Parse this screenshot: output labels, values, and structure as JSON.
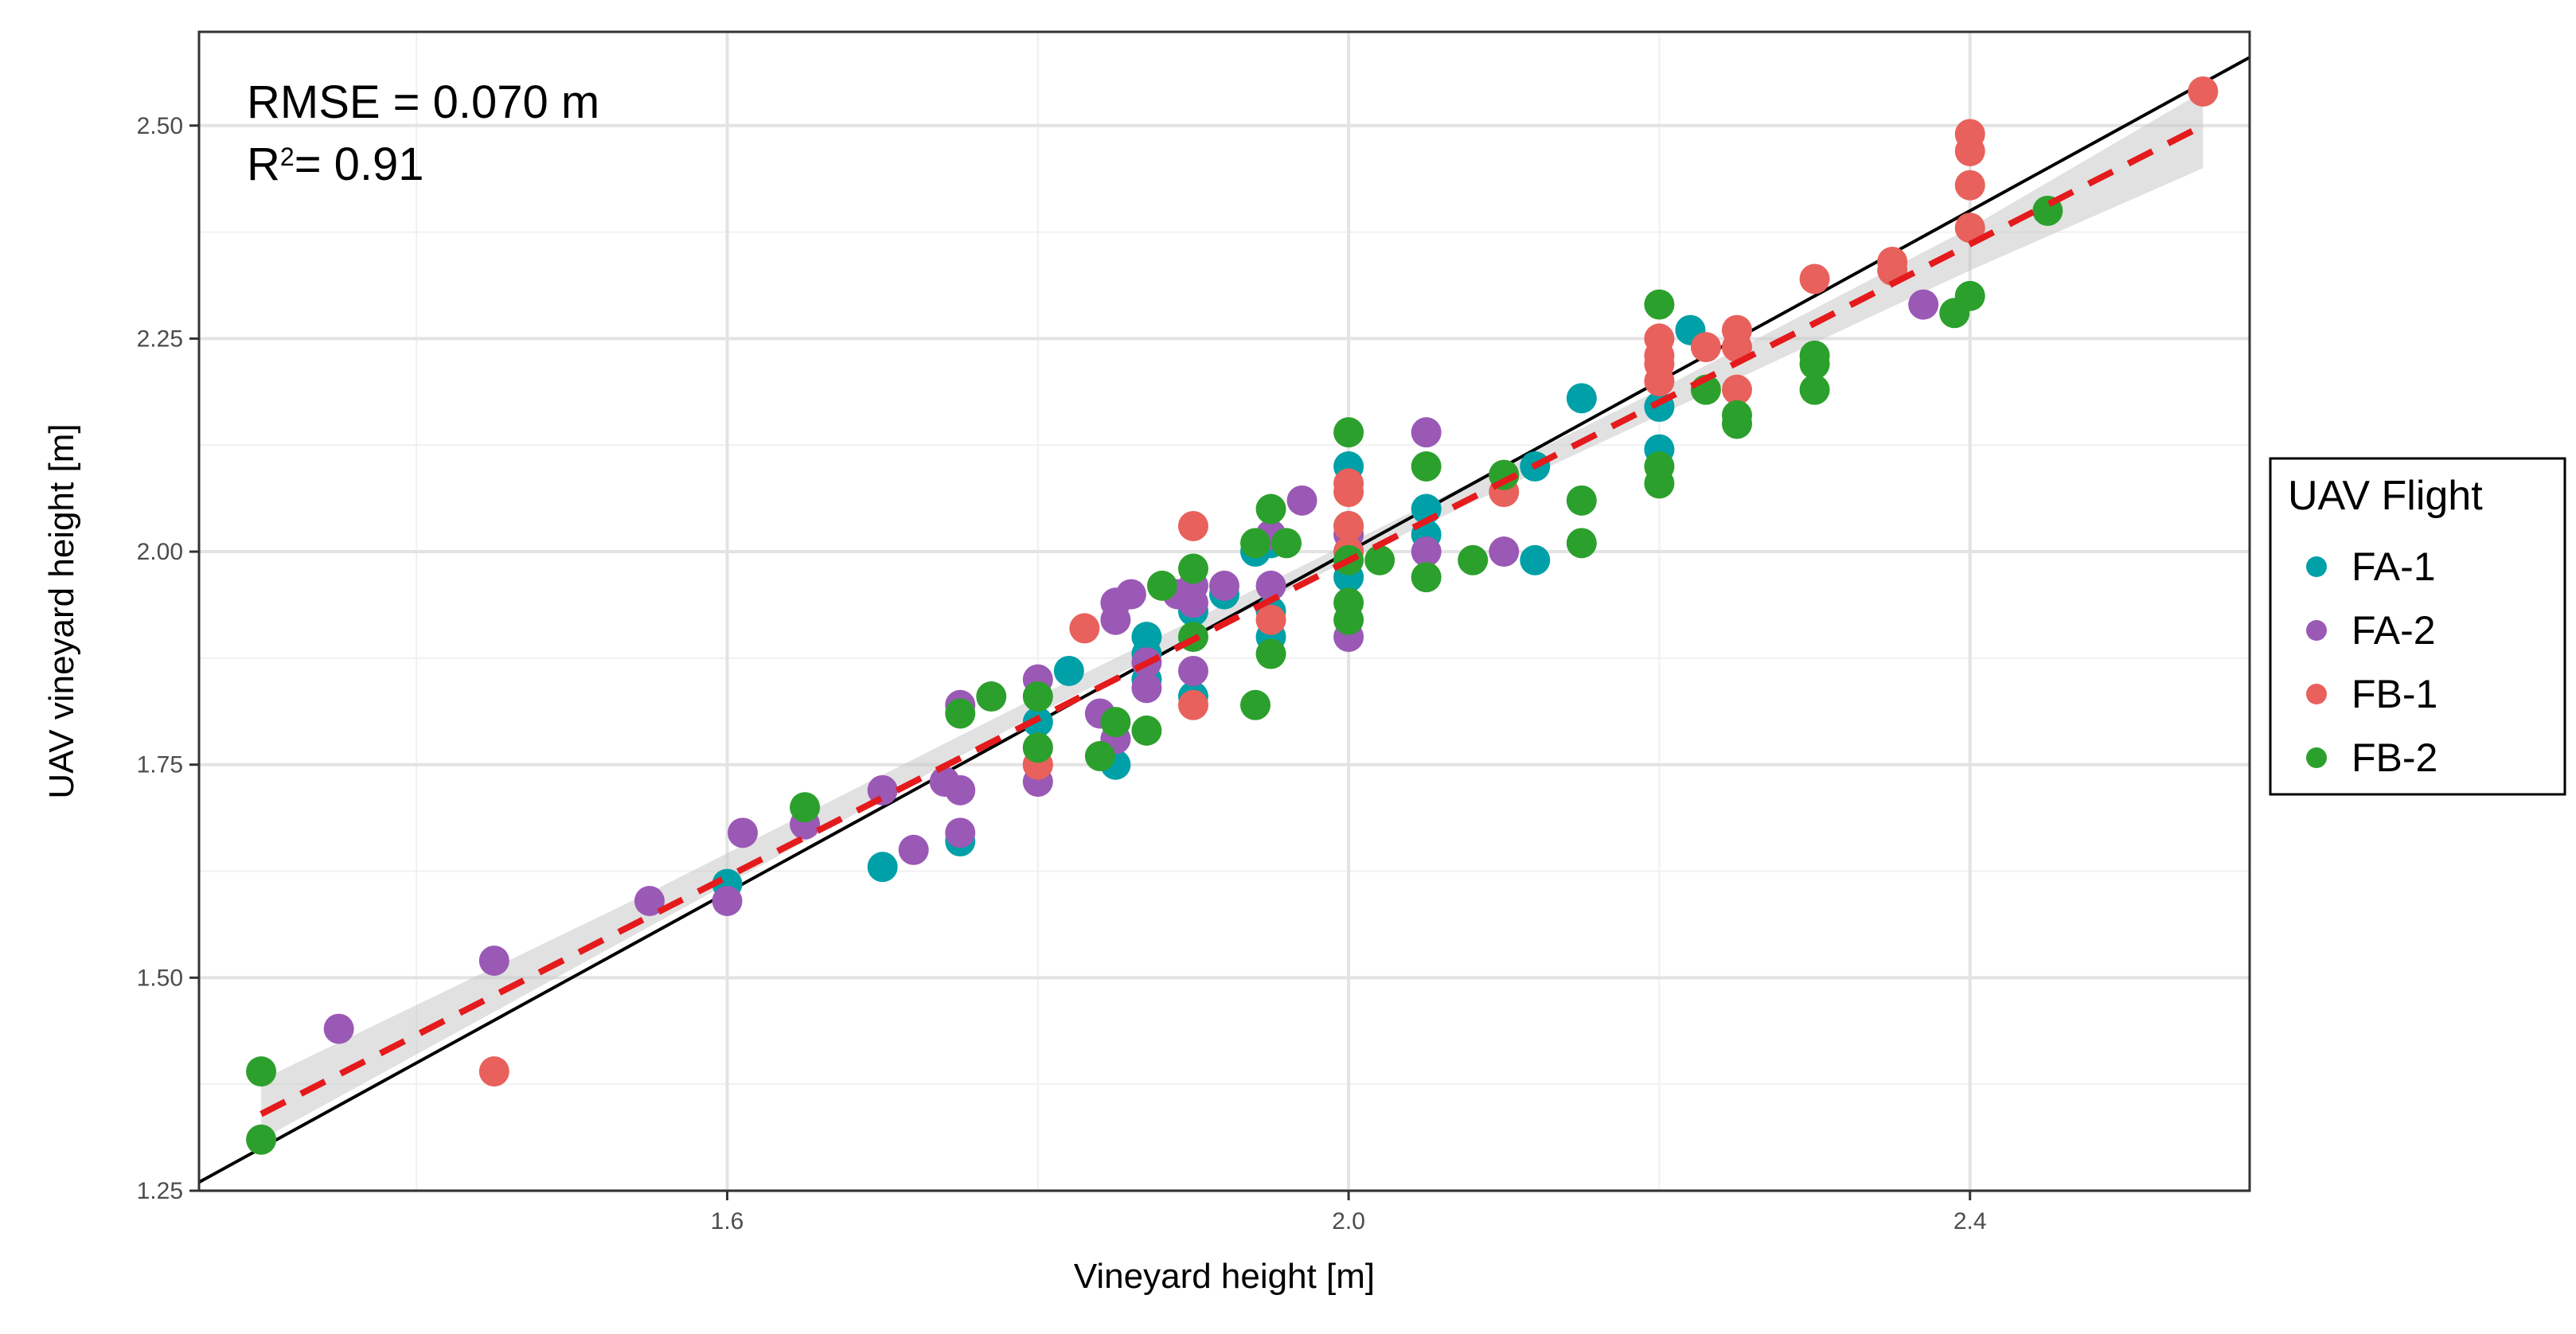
{
  "chart_data": {
    "type": "scatter",
    "xlabel": "Vineyard height [m]",
    "ylabel": "UAV vineyard height [m]",
    "xlim": [
      1.26,
      2.58
    ],
    "ylim": [
      1.25,
      2.61
    ],
    "x_ticks": [
      1.6,
      2.0,
      2.4
    ],
    "x_tick_labels": [
      "1.6",
      "2.0",
      "2.4"
    ],
    "x_minor_ticks": [
      1.4,
      1.8,
      2.2
    ],
    "y_ticks": [
      1.25,
      1.5,
      1.75,
      2.0,
      2.25,
      2.5
    ],
    "y_tick_labels": [
      "1.25",
      "1.50",
      "1.75",
      "2.00",
      "2.25",
      "2.50"
    ],
    "y_minor_ticks": [
      1.375,
      1.625,
      1.875,
      2.125,
      2.375
    ],
    "grid": true,
    "annotations": {
      "rmse": "RMSE = 0.070 m",
      "r2_prefix": "R",
      "r2_exp": "2",
      "r2_suffix": "= 0.91"
    },
    "identity_line": {
      "slope": 1,
      "intercept": 0,
      "color": "#000000"
    },
    "fit_line": {
      "start": [
        1.3,
        1.34
      ],
      "end": [
        2.55,
        2.5
      ],
      "color": "#e41a1c",
      "style": "dashed",
      "ci_band": [
        {
          "x": 1.3,
          "lower": 1.31,
          "upper": 1.38
        },
        {
          "x": 1.55,
          "lower": 1.56,
          "upper": 1.6
        },
        {
          "x": 1.8,
          "lower": 1.81,
          "upper": 1.83
        },
        {
          "x": 2.0,
          "lower": 1.99,
          "upper": 2.01
        },
        {
          "x": 2.2,
          "lower": 2.16,
          "upper": 2.19
        },
        {
          "x": 2.4,
          "lower": 2.33,
          "upper": 2.38
        },
        {
          "x": 2.55,
          "lower": 2.45,
          "upper": 2.54
        }
      ]
    },
    "legend": {
      "title": "UAV Flight",
      "position": "right"
    },
    "series": [
      {
        "name": "FA-1",
        "color": "#00a0a8",
        "points": [
          [
            1.6,
            1.61
          ],
          [
            1.7,
            1.63
          ],
          [
            1.75,
            1.66
          ],
          [
            1.8,
            1.8
          ],
          [
            1.82,
            1.86
          ],
          [
            1.85,
            1.75
          ],
          [
            1.85,
            1.78
          ],
          [
            1.87,
            1.85
          ],
          [
            1.87,
            1.88
          ],
          [
            1.87,
            1.9
          ],
          [
            1.9,
            1.83
          ],
          [
            1.9,
            1.93
          ],
          [
            1.92,
            1.95
          ],
          [
            1.94,
            2.0
          ],
          [
            1.95,
            1.9
          ],
          [
            1.95,
            1.93
          ],
          [
            1.95,
            2.01
          ],
          [
            2.0,
            1.97
          ],
          [
            2.0,
            2.0
          ],
          [
            2.0,
            2.03
          ],
          [
            2.0,
            2.1
          ],
          [
            2.05,
            2.02
          ],
          [
            2.05,
            2.05
          ],
          [
            2.1,
            2.09
          ],
          [
            2.12,
            1.99
          ],
          [
            2.12,
            2.1
          ],
          [
            2.15,
            2.18
          ],
          [
            2.2,
            2.12
          ],
          [
            2.2,
            2.17
          ],
          [
            2.22,
            2.26
          ]
        ]
      },
      {
        "name": "FA-2",
        "color": "#9b59b6",
        "points": [
          [
            1.35,
            1.44
          ],
          [
            1.45,
            1.52
          ],
          [
            1.55,
            1.59
          ],
          [
            1.6,
            1.59
          ],
          [
            1.61,
            1.67
          ],
          [
            1.65,
            1.68
          ],
          [
            1.7,
            1.72
          ],
          [
            1.72,
            1.65
          ],
          [
            1.74,
            1.73
          ],
          [
            1.75,
            1.67
          ],
          [
            1.75,
            1.72
          ],
          [
            1.75,
            1.82
          ],
          [
            1.8,
            1.73
          ],
          [
            1.8,
            1.75
          ],
          [
            1.8,
            1.85
          ],
          [
            1.84,
            1.81
          ],
          [
            1.85,
            1.78
          ],
          [
            1.85,
            1.92
          ],
          [
            1.85,
            1.94
          ],
          [
            1.86,
            1.95
          ],
          [
            1.87,
            1.84
          ],
          [
            1.87,
            1.87
          ],
          [
            1.89,
            1.95
          ],
          [
            1.9,
            1.86
          ],
          [
            1.9,
            1.94
          ],
          [
            1.9,
            1.96
          ],
          [
            1.92,
            1.96
          ],
          [
            1.95,
            1.96
          ],
          [
            1.95,
            2.02
          ],
          [
            1.97,
            2.06
          ],
          [
            2.0,
            1.9
          ],
          [
            2.0,
            2.02
          ],
          [
            2.05,
            2.0
          ],
          [
            2.05,
            2.14
          ],
          [
            2.1,
            2.0
          ],
          [
            2.37,
            2.29
          ]
        ]
      },
      {
        "name": "FB-1",
        "color": "#e8615c",
        "points": [
          [
            1.45,
            1.39
          ],
          [
            1.8,
            1.75
          ],
          [
            1.8,
            1.77
          ],
          [
            1.83,
            1.91
          ],
          [
            1.9,
            1.82
          ],
          [
            1.9,
            2.03
          ],
          [
            1.95,
            1.92
          ],
          [
            2.0,
            2.0
          ],
          [
            2.0,
            2.03
          ],
          [
            2.0,
            2.07
          ],
          [
            2.0,
            2.08
          ],
          [
            2.1,
            2.07
          ],
          [
            2.1,
            2.09
          ],
          [
            2.2,
            2.2
          ],
          [
            2.2,
            2.22
          ],
          [
            2.2,
            2.23
          ],
          [
            2.2,
            2.25
          ],
          [
            2.23,
            2.24
          ],
          [
            2.25,
            2.19
          ],
          [
            2.25,
            2.24
          ],
          [
            2.25,
            2.26
          ],
          [
            2.3,
            2.32
          ],
          [
            2.35,
            2.33
          ],
          [
            2.35,
            2.34
          ],
          [
            2.4,
            2.38
          ],
          [
            2.4,
            2.43
          ],
          [
            2.4,
            2.47
          ],
          [
            2.4,
            2.49
          ],
          [
            2.55,
            2.54
          ]
        ]
      },
      {
        "name": "FB-2",
        "color": "#2ca02c",
        "points": [
          [
            1.3,
            1.31
          ],
          [
            1.3,
            1.39
          ],
          [
            1.65,
            1.7
          ],
          [
            1.75,
            1.81
          ],
          [
            1.77,
            1.83
          ],
          [
            1.8,
            1.77
          ],
          [
            1.8,
            1.83
          ],
          [
            1.84,
            1.76
          ],
          [
            1.85,
            1.8
          ],
          [
            1.87,
            1.79
          ],
          [
            1.88,
            1.96
          ],
          [
            1.9,
            1.9
          ],
          [
            1.9,
            1.98
          ],
          [
            1.94,
            1.82
          ],
          [
            1.94,
            2.01
          ],
          [
            1.95,
            1.88
          ],
          [
            1.95,
            2.05
          ],
          [
            1.96,
            2.01
          ],
          [
            2.0,
            1.92
          ],
          [
            2.0,
            1.94
          ],
          [
            2.0,
            1.99
          ],
          [
            2.0,
            2.14
          ],
          [
            2.02,
            1.99
          ],
          [
            2.05,
            1.97
          ],
          [
            2.05,
            2.1
          ],
          [
            2.08,
            1.99
          ],
          [
            2.1,
            2.09
          ],
          [
            2.15,
            2.01
          ],
          [
            2.15,
            2.06
          ],
          [
            2.2,
            2.08
          ],
          [
            2.2,
            2.1
          ],
          [
            2.2,
            2.29
          ],
          [
            2.23,
            2.19
          ],
          [
            2.25,
            2.15
          ],
          [
            2.25,
            2.16
          ],
          [
            2.3,
            2.19
          ],
          [
            2.3,
            2.22
          ],
          [
            2.3,
            2.23
          ],
          [
            2.39,
            2.28
          ],
          [
            2.4,
            2.3
          ],
          [
            2.45,
            2.4
          ]
        ]
      }
    ]
  }
}
